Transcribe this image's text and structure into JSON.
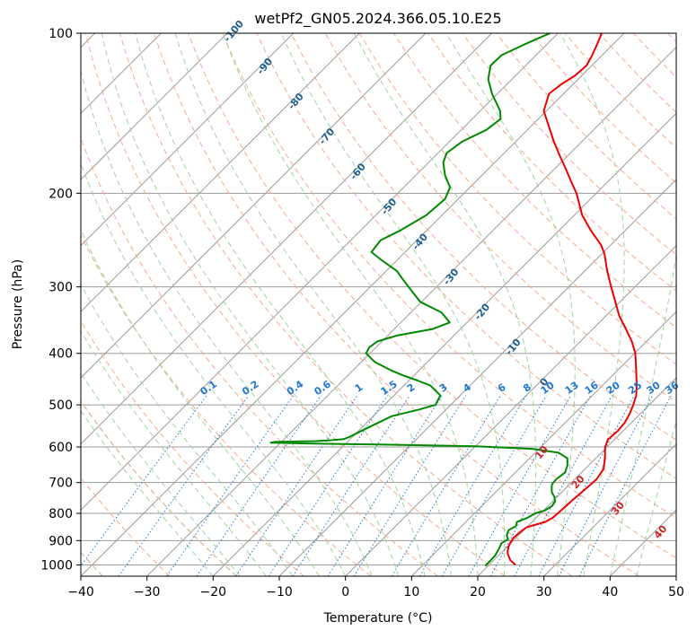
{
  "chart_data": {
    "type": "line",
    "title": "wetPf2_GN05.2024.366.05.10.E25",
    "xlabel": "Temperature (°C)",
    "ylabel": "Pressure (hPa)",
    "xlim": [
      -40,
      50
    ],
    "ylim": [
      1050,
      100
    ],
    "y_scale": "log",
    "grid": true,
    "x_ticks": [
      "−40",
      "−30",
      "−20",
      "−10",
      "0",
      "10",
      "20",
      "30",
      "40",
      "50"
    ],
    "y_ticks": [
      "100",
      "200",
      "300",
      "400",
      "500",
      "600",
      "700",
      "800",
      "900",
      "1000"
    ],
    "skew": 45,
    "colors": {
      "temperature": "#ee0000",
      "dewpoint": "#008800",
      "isotherm_grid": "#9a9a9a",
      "dry_adiabat": "#f7a989",
      "moist_adiabat": "#9dd59d",
      "mixing_ratio": "#1f77d4",
      "dry_adiabat_label": "#cc2222",
      "moist_label": "#1f5f8f",
      "outer_curve": "#d9b89a"
    },
    "series": [
      {
        "key": "temperature",
        "points": [
          [
            1000,
            24.0
          ],
          [
            980,
            22.5
          ],
          [
            950,
            21.0
          ],
          [
            925,
            20.2
          ],
          [
            905,
            19.8
          ],
          [
            890,
            19.6
          ],
          [
            870,
            19.7
          ],
          [
            850,
            20.0
          ],
          [
            830,
            22.0
          ],
          [
            815,
            22.5
          ],
          [
            800,
            22.6
          ],
          [
            760,
            22.8
          ],
          [
            720,
            23.1
          ],
          [
            690,
            23.3
          ],
          [
            660,
            22.8
          ],
          [
            630,
            21.4
          ],
          [
            600,
            19.7
          ],
          [
            580,
            19.0
          ],
          [
            560,
            19.2
          ],
          [
            540,
            19.0
          ],
          [
            520,
            18.4
          ],
          [
            500,
            17.6
          ],
          [
            480,
            16.6
          ],
          [
            460,
            15.2
          ],
          [
            440,
            13.6
          ],
          [
            420,
            11.9
          ],
          [
            400,
            10.1
          ],
          [
            380,
            7.8
          ],
          [
            360,
            5.0
          ],
          [
            340,
            2.0
          ],
          [
            320,
            -0.7
          ],
          [
            300,
            -3.6
          ],
          [
            280,
            -6.6
          ],
          [
            260,
            -9.6
          ],
          [
            250,
            -11.5
          ],
          [
            235,
            -15.2
          ],
          [
            220,
            -18.8
          ],
          [
            200,
            -23.0
          ],
          [
            190,
            -25.6
          ],
          [
            180,
            -28.3
          ],
          [
            170,
            -31.2
          ],
          [
            160,
            -34.2
          ],
          [
            150,
            -37.2
          ],
          [
            140,
            -40.4
          ],
          [
            130,
            -42.2
          ],
          [
            125,
            -41.8
          ],
          [
            120,
            -41.0
          ],
          [
            115,
            -40.8
          ],
          [
            110,
            -41.5
          ],
          [
            105,
            -42.4
          ],
          [
            100,
            -43.4
          ]
        ]
      },
      {
        "key": "dewpoint",
        "points": [
          [
            1005,
            19.6
          ],
          [
            960,
            19.5
          ],
          [
            930,
            19.0
          ],
          [
            910,
            18.6
          ],
          [
            895,
            19.0
          ],
          [
            880,
            18.2
          ],
          [
            860,
            17.7
          ],
          [
            845,
            18.2
          ],
          [
            830,
            17.7
          ],
          [
            815,
            18.7
          ],
          [
            800,
            19.2
          ],
          [
            790,
            20.2
          ],
          [
            775,
            20.6
          ],
          [
            760,
            20.4
          ],
          [
            745,
            19.6
          ],
          [
            730,
            18.5
          ],
          [
            720,
            18.0
          ],
          [
            705,
            17.3
          ],
          [
            690,
            17.2
          ],
          [
            670,
            17.5
          ],
          [
            650,
            16.8
          ],
          [
            630,
            15.7
          ],
          [
            615,
            13.5
          ],
          [
            605,
            9.0
          ],
          [
            598,
            0.0
          ],
          [
            594,
            -14.0
          ],
          [
            591,
            -26.0
          ],
          [
            589,
            -31.5
          ],
          [
            587,
            -31.0
          ],
          [
            585,
            -25.0
          ],
          [
            583,
            -23.0
          ],
          [
            580,
            -21.0
          ],
          [
            575,
            -20.5
          ],
          [
            560,
            -19.6
          ],
          [
            545,
            -18.6
          ],
          [
            525,
            -17.2
          ],
          [
            510,
            -14.0
          ],
          [
            500,
            -12.3
          ],
          [
            480,
            -13.0
          ],
          [
            460,
            -16.0
          ],
          [
            450,
            -18.7
          ],
          [
            440,
            -21.7
          ],
          [
            430,
            -24.4
          ],
          [
            415,
            -28.0
          ],
          [
            400,
            -30.6
          ],
          [
            390,
            -31.0
          ],
          [
            380,
            -30.7
          ],
          [
            370,
            -28.5
          ],
          [
            360,
            -24.2
          ],
          [
            350,
            -22.6
          ],
          [
            335,
            -25.4
          ],
          [
            320,
            -30.2
          ],
          [
            305,
            -33.2
          ],
          [
            290,
            -36.3
          ],
          [
            280,
            -38.4
          ],
          [
            268,
            -42.1
          ],
          [
            258,
            -45.1
          ],
          [
            245,
            -45.5
          ],
          [
            235,
            -44.0
          ],
          [
            220,
            -42.4
          ],
          [
            205,
            -42.0
          ],
          [
            195,
            -43.0
          ],
          [
            185,
            -45.6
          ],
          [
            175,
            -47.8
          ],
          [
            168,
            -48.7
          ],
          [
            160,
            -48.1
          ],
          [
            152,
            -46.2
          ],
          [
            145,
            -45.7
          ],
          [
            140,
            -47.0
          ],
          [
            130,
            -50.8
          ],
          [
            122,
            -53.6
          ],
          [
            115,
            -55.3
          ],
          [
            110,
            -55.2
          ],
          [
            105,
            -53.4
          ],
          [
            100,
            -51.2
          ]
        ]
      }
    ],
    "mixing_ratio_labels": [
      "0.1",
      "0.2",
      "0.4",
      "0.6",
      "1",
      "1.5",
      "2",
      "3",
      "4",
      "6",
      "8",
      "10",
      "13",
      "16",
      "20",
      "25",
      "30",
      "36"
    ],
    "moist_adiabat_labels": [
      "-100",
      "-90",
      "-80",
      "-70",
      "-60",
      "-50",
      "-40",
      "-30",
      "-20",
      "-10",
      "0"
    ],
    "dry_adiabat_labels": [
      "10",
      "20",
      "30",
      "40"
    ]
  }
}
